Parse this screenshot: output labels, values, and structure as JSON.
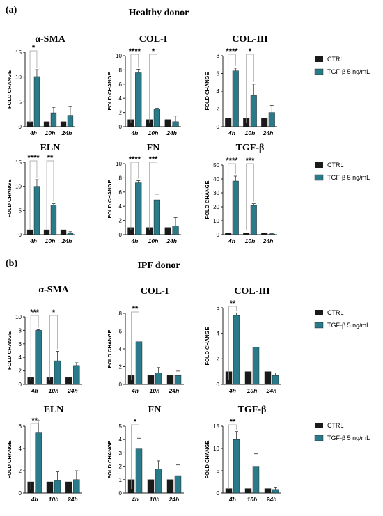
{
  "colors": {
    "ctrl": "#1a1a1a",
    "tgf": "#2a7b89",
    "axis": "#222222",
    "sig": "#9a9a9a"
  },
  "panels": [
    {
      "label": "(a)",
      "title": "Healthy donor"
    },
    {
      "label": "(b)",
      "title": "IPF donor"
    }
  ],
  "legend": {
    "ctrl": "CTRL",
    "tgf": "TGF-β 5 ng/mL"
  },
  "chart_data": [
    {
      "type": "bar",
      "title": "α-SMA",
      "ylabel": "FOLD CHANGE",
      "categories": [
        "4h",
        "10h",
        "24h"
      ],
      "ylim": [
        0,
        15
      ],
      "yticks": [
        0,
        5,
        10,
        15
      ],
      "series": [
        {
          "name": "CTRL",
          "values": [
            1,
            1,
            1
          ],
          "errors": [
            0,
            0,
            0
          ]
        },
        {
          "name": "TGF-β 5 ng/mL",
          "values": [
            10.1,
            2.8,
            2.3
          ],
          "errors": [
            1.4,
            1.1,
            1.8
          ]
        }
      ],
      "significance": [
        {
          "category": "4h",
          "label": "*"
        }
      ]
    },
    {
      "type": "bar",
      "title": "COL-I",
      "ylabel": "FOLD CHANGE",
      "categories": [
        "4h",
        "10h",
        "24h"
      ],
      "ylim": [
        0,
        10
      ],
      "yticks": [
        0,
        2,
        4,
        6,
        8,
        10
      ],
      "series": [
        {
          "name": "CTRL",
          "values": [
            1,
            1,
            1
          ],
          "errors": [
            0,
            0,
            0
          ]
        },
        {
          "name": "TGF-β 5 ng/mL",
          "values": [
            7.6,
            2.5,
            0.7
          ],
          "errors": [
            0.5,
            0.1,
            0.8
          ]
        }
      ],
      "significance": [
        {
          "category": "4h",
          "label": "****"
        },
        {
          "category": "10h",
          "label": "*"
        }
      ]
    },
    {
      "type": "bar",
      "title": "COL-III",
      "ylabel": "FOLD CHANGE",
      "categories": [
        "4h",
        "10h",
        "24h"
      ],
      "ylim": [
        0,
        8
      ],
      "yticks": [
        0,
        2,
        4,
        6,
        8
      ],
      "series": [
        {
          "name": "CTRL",
          "values": [
            1,
            1,
            1
          ],
          "errors": [
            0,
            0,
            0
          ]
        },
        {
          "name": "TGF-β 5 ng/mL",
          "values": [
            6.3,
            3.5,
            1.6
          ],
          "errors": [
            0.3,
            1.3,
            0.8
          ]
        }
      ],
      "significance": [
        {
          "category": "4h",
          "label": "****"
        },
        {
          "category": "10h",
          "label": "*"
        }
      ]
    },
    {
      "type": "bar",
      "title": "ELN",
      "ylabel": "FOLD CHANGE",
      "categories": [
        "4h",
        "10h",
        "24h"
      ],
      "ylim": [
        0,
        15
      ],
      "yticks": [
        0,
        5,
        10,
        15
      ],
      "series": [
        {
          "name": "CTRL",
          "values": [
            1,
            1,
            1
          ],
          "errors": [
            0,
            0,
            0
          ]
        },
        {
          "name": "TGF-β 5 ng/mL",
          "values": [
            10,
            6.1,
            0.3
          ],
          "errors": [
            1.4,
            0.3,
            0.3
          ]
        }
      ],
      "significance": [
        {
          "category": "4h",
          "label": "****"
        },
        {
          "category": "10h",
          "label": "**"
        }
      ]
    },
    {
      "type": "bar",
      "title": "FN",
      "ylabel": "FOLD CHANGE",
      "categories": [
        "4h",
        "10h",
        "24h"
      ],
      "ylim": [
        0,
        10
      ],
      "yticks": [
        0,
        2,
        4,
        6,
        8,
        10
      ],
      "series": [
        {
          "name": "CTRL",
          "values": [
            1,
            1,
            1
          ],
          "errors": [
            0,
            0,
            0
          ]
        },
        {
          "name": "TGF-β 5 ng/mL",
          "values": [
            7.3,
            4.9,
            1.2
          ],
          "errors": [
            0.3,
            0.8,
            1.2
          ]
        }
      ],
      "significance": [
        {
          "category": "4h",
          "label": "****"
        },
        {
          "category": "10h",
          "label": "***"
        }
      ]
    },
    {
      "type": "bar",
      "title": "TGF-β",
      "ylabel": "FOLD CHANGE",
      "categories": [
        "4h",
        "10h",
        "24h"
      ],
      "ylim": [
        0,
        50
      ],
      "yticks": [
        0,
        10,
        20,
        30,
        40,
        50
      ],
      "series": [
        {
          "name": "CTRL",
          "values": [
            1,
            1,
            1
          ],
          "errors": [
            0,
            0,
            0
          ]
        },
        {
          "name": "TGF-β 5 ng/mL",
          "values": [
            38.5,
            21,
            0.5
          ],
          "errors": [
            3.5,
            1.2,
            0.2
          ]
        }
      ],
      "significance": [
        {
          "category": "4h",
          "label": "****"
        },
        {
          "category": "10h",
          "label": "***"
        }
      ]
    },
    {
      "type": "bar",
      "title": "α-SMA",
      "ylabel": "FOLD CHANGE",
      "categories": [
        "4h",
        "10h",
        "24h"
      ],
      "ylim": [
        0,
        10
      ],
      "yticks": [
        0,
        2,
        4,
        6,
        8,
        10
      ],
      "series": [
        {
          "name": "CTRL",
          "values": [
            1,
            1,
            1
          ],
          "errors": [
            0,
            0,
            0
          ]
        },
        {
          "name": "TGF-β 5 ng/mL",
          "values": [
            8,
            3.5,
            2.8
          ],
          "errors": [
            0.1,
            1.4,
            0.4
          ]
        }
      ],
      "significance": [
        {
          "category": "4h",
          "label": "***"
        },
        {
          "category": "10h",
          "label": "*"
        }
      ]
    },
    {
      "type": "bar",
      "title": "COL-I",
      "ylabel": "FOLD CHANGE",
      "categories": [
        "4h",
        "10h",
        "24h"
      ],
      "ylim": [
        0,
        8
      ],
      "yticks": [
        0,
        2,
        4,
        6,
        8
      ],
      "series": [
        {
          "name": "CTRL",
          "values": [
            1,
            1,
            1
          ],
          "errors": [
            0,
            0,
            0
          ]
        },
        {
          "name": "TGF-β 5 ng/mL",
          "values": [
            4.8,
            1.3,
            1
          ],
          "errors": [
            1.2,
            0.6,
            0.5
          ]
        }
      ],
      "significance": [
        {
          "category": "4h",
          "label": "**"
        }
      ]
    },
    {
      "type": "bar",
      "title": "COL-III",
      "ylabel": "FOLD CHANGE",
      "categories": [
        "4h",
        "10h",
        "24h"
      ],
      "ylim": [
        0,
        6
      ],
      "yticks": [
        0,
        2,
        4,
        6
      ],
      "series": [
        {
          "name": "CTRL",
          "values": [
            1,
            1,
            1
          ],
          "errors": [
            0,
            0,
            0
          ]
        },
        {
          "name": "TGF-β 5 ng/mL",
          "values": [
            5.4,
            2.9,
            0.7
          ],
          "errors": [
            0.2,
            1.6,
            0.2
          ]
        }
      ],
      "significance": [
        {
          "category": "4h",
          "label": "**"
        }
      ]
    },
    {
      "type": "bar",
      "title": "ELN",
      "ylabel": "FOLD CHANGE",
      "categories": [
        "4h",
        "10h",
        "24h"
      ],
      "ylim": [
        0,
        6
      ],
      "yticks": [
        0,
        2,
        4,
        6
      ],
      "series": [
        {
          "name": "CTRL",
          "values": [
            1,
            1,
            1
          ],
          "errors": [
            0,
            0,
            0
          ]
        },
        {
          "name": "TGF-β 5 ng/mL",
          "values": [
            5.4,
            1.1,
            1.2
          ],
          "errors": [
            1.1,
            0.8,
            0.8
          ]
        }
      ],
      "significance": [
        {
          "category": "4h",
          "label": "**"
        }
      ]
    },
    {
      "type": "bar",
      "title": "FN",
      "ylabel": "FOLD CHANGE",
      "categories": [
        "4h",
        "10h",
        "24h"
      ],
      "ylim": [
        0,
        5
      ],
      "yticks": [
        0,
        1,
        2,
        3,
        4,
        5
      ],
      "series": [
        {
          "name": "CTRL",
          "values": [
            1,
            1,
            1
          ],
          "errors": [
            0,
            0,
            0
          ]
        },
        {
          "name": "TGF-β 5 ng/mL",
          "values": [
            3.3,
            1.8,
            1.3
          ],
          "errors": [
            0.8,
            0.6,
            0.8
          ]
        }
      ],
      "significance": [
        {
          "category": "4h",
          "label": "*"
        }
      ]
    },
    {
      "type": "bar",
      "title": "TGF-β",
      "ylabel": "FOLD CHANGE",
      "categories": [
        "4h",
        "10h",
        "24h"
      ],
      "ylim": [
        0,
        15
      ],
      "yticks": [
        0,
        5,
        10,
        15
      ],
      "series": [
        {
          "name": "CTRL",
          "values": [
            1,
            1,
            1
          ],
          "errors": [
            0,
            0,
            0
          ]
        },
        {
          "name": "TGF-β 5 ng/mL",
          "values": [
            12,
            6,
            0.8
          ],
          "errors": [
            1.8,
            2.8,
            0.4
          ]
        }
      ],
      "significance": [
        {
          "category": "4h",
          "label": "**"
        }
      ]
    }
  ]
}
